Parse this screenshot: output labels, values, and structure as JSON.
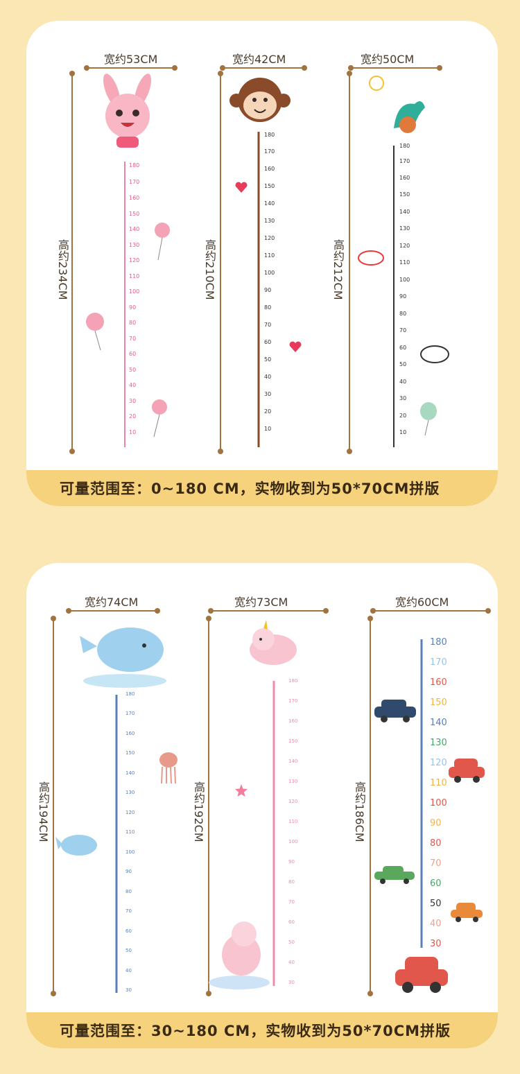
{
  "panel1": {
    "footer": "可量范围至：0~180 CM，实物收到为50*70CM拼版",
    "charts": [
      {
        "width_label": "宽约53CM",
        "height_label": "高约234CM",
        "ruler_ticks": [
          "180",
          "170",
          "160",
          "150",
          "140",
          "130",
          "120",
          "110",
          "100",
          "90",
          "80",
          "70",
          "60",
          "50",
          "40",
          "30",
          "20",
          "10"
        ],
        "theme": "rabbit",
        "color": "#e8578f"
      },
      {
        "width_label": "宽约42CM",
        "height_label": "高约210CM",
        "ruler_ticks": [
          "180",
          "170",
          "160",
          "150",
          "140",
          "130",
          "120",
          "110",
          "100",
          "90",
          "80",
          "70",
          "60",
          "50",
          "40",
          "30",
          "20",
          "10"
        ],
        "theme": "monkey",
        "color": "#8a4b2a"
      },
      {
        "width_label": "宽约50CM",
        "height_label": "高约212CM",
        "ruler_ticks": [
          "180",
          "170",
          "160",
          "150",
          "140",
          "130",
          "120",
          "110",
          "100",
          "90",
          "80",
          "70",
          "60",
          "50",
          "40",
          "30",
          "20",
          "10"
        ],
        "theme": "dinosaur",
        "color": "#333333"
      }
    ]
  },
  "panel2": {
    "footer": "可量范围至：30~180 CM，实物收到为50*70CM拼版",
    "charts": [
      {
        "width_label": "宽约74CM",
        "height_label": "高约194CM",
        "ruler_ticks": [
          "180",
          "170",
          "160",
          "150",
          "140",
          "130",
          "120",
          "110",
          "100",
          "90",
          "80",
          "70",
          "60",
          "50",
          "40",
          "30"
        ],
        "theme": "whale",
        "color": "#5b7fb8"
      },
      {
        "width_label": "宽约73CM",
        "height_label": "高约192CM",
        "ruler_ticks": [
          "180",
          "170",
          "160",
          "150",
          "140",
          "130",
          "120",
          "110",
          "100",
          "90",
          "80",
          "70",
          "60",
          "50",
          "40",
          "30"
        ],
        "theme": "unicorn",
        "color": "#ef8aa8"
      },
      {
        "width_label": "宽约60CM",
        "height_label": "高约186CM",
        "ruler_ticks": [
          "180",
          "170",
          "160",
          "150",
          "140",
          "130",
          "120",
          "110",
          "100",
          "90",
          "80",
          "70",
          "60",
          "50",
          "40",
          "30"
        ],
        "theme": "cars",
        "color": "#5b7fb8"
      }
    ]
  }
}
